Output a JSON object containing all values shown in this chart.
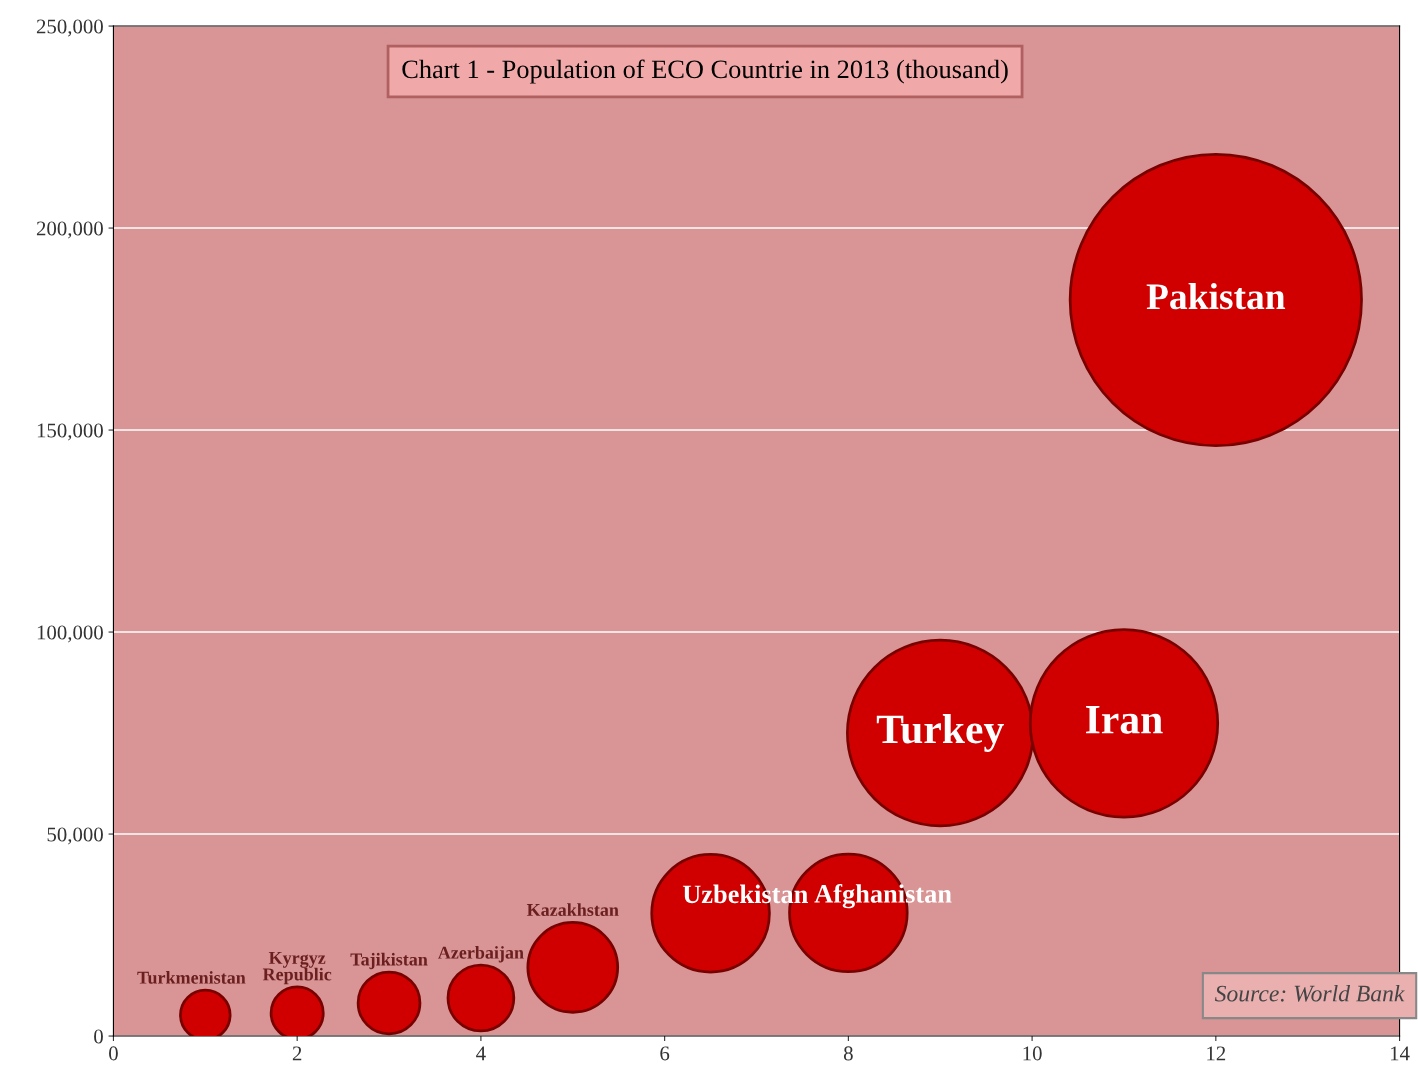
{
  "chart_data": {
    "type": "bubble",
    "title": "Chart 1 - Population of ECO Countrie in 2013",
    "subtitle": "(thousand)",
    "x": [
      1,
      2,
      3,
      4,
      5,
      6.5,
      8,
      9,
      11,
      12
    ],
    "values": [
      5200,
      5700,
      8200,
      9400,
      17000,
      30400,
      30500,
      75000,
      77400,
      182200
    ],
    "sizes": [
      0.029,
      0.032,
      0.045,
      0.051,
      0.095,
      0.163,
      0.163,
      0.406,
      0.414,
      1
    ],
    "color": "#d10000",
    "xlim": [
      0,
      14
    ],
    "xticks": [
      0,
      2,
      4,
      6,
      8,
      10,
      12,
      14
    ],
    "ylim": [
      0,
      250000
    ],
    "yticks": [
      {
        "value": 0,
        "label": "0"
      },
      {
        "value": 50000,
        "label": "50,000"
      },
      {
        "value": 100000,
        "label": "100,000"
      },
      {
        "value": 150000,
        "label": "150,000"
      },
      {
        "value": 200000,
        "label": "200,000"
      },
      {
        "value": 250000,
        "label": "250,000"
      }
    ],
    "grid": "y",
    "annotations": [
      {
        "text": "Turkmenistan",
        "x": 1,
        "y": 5200
      },
      {
        "text": "Kyrgyz\nRepublic",
        "x": 2,
        "y": 5700
      },
      {
        "text": "Tajikistan",
        "x": 3,
        "y": 8200
      },
      {
        "text": "Azerbaijan",
        "x": 4,
        "y": 9400
      },
      {
        "text": "Kazakhstan",
        "x": 5,
        "y": 17000
      },
      {
        "text": "Uzbekistan",
        "x": 6.5,
        "y": 30400
      },
      {
        "text": "Afghanistan",
        "x": 8,
        "y": 30500
      },
      {
        "text": "Turkey",
        "x": 9,
        "y": 75000
      },
      {
        "text": "Iran",
        "x": 11,
        "y": 77400
      },
      {
        "text": "Pakistan",
        "x": 12,
        "y": 182200
      },
      "Source: World Bank"
    ]
  }
}
